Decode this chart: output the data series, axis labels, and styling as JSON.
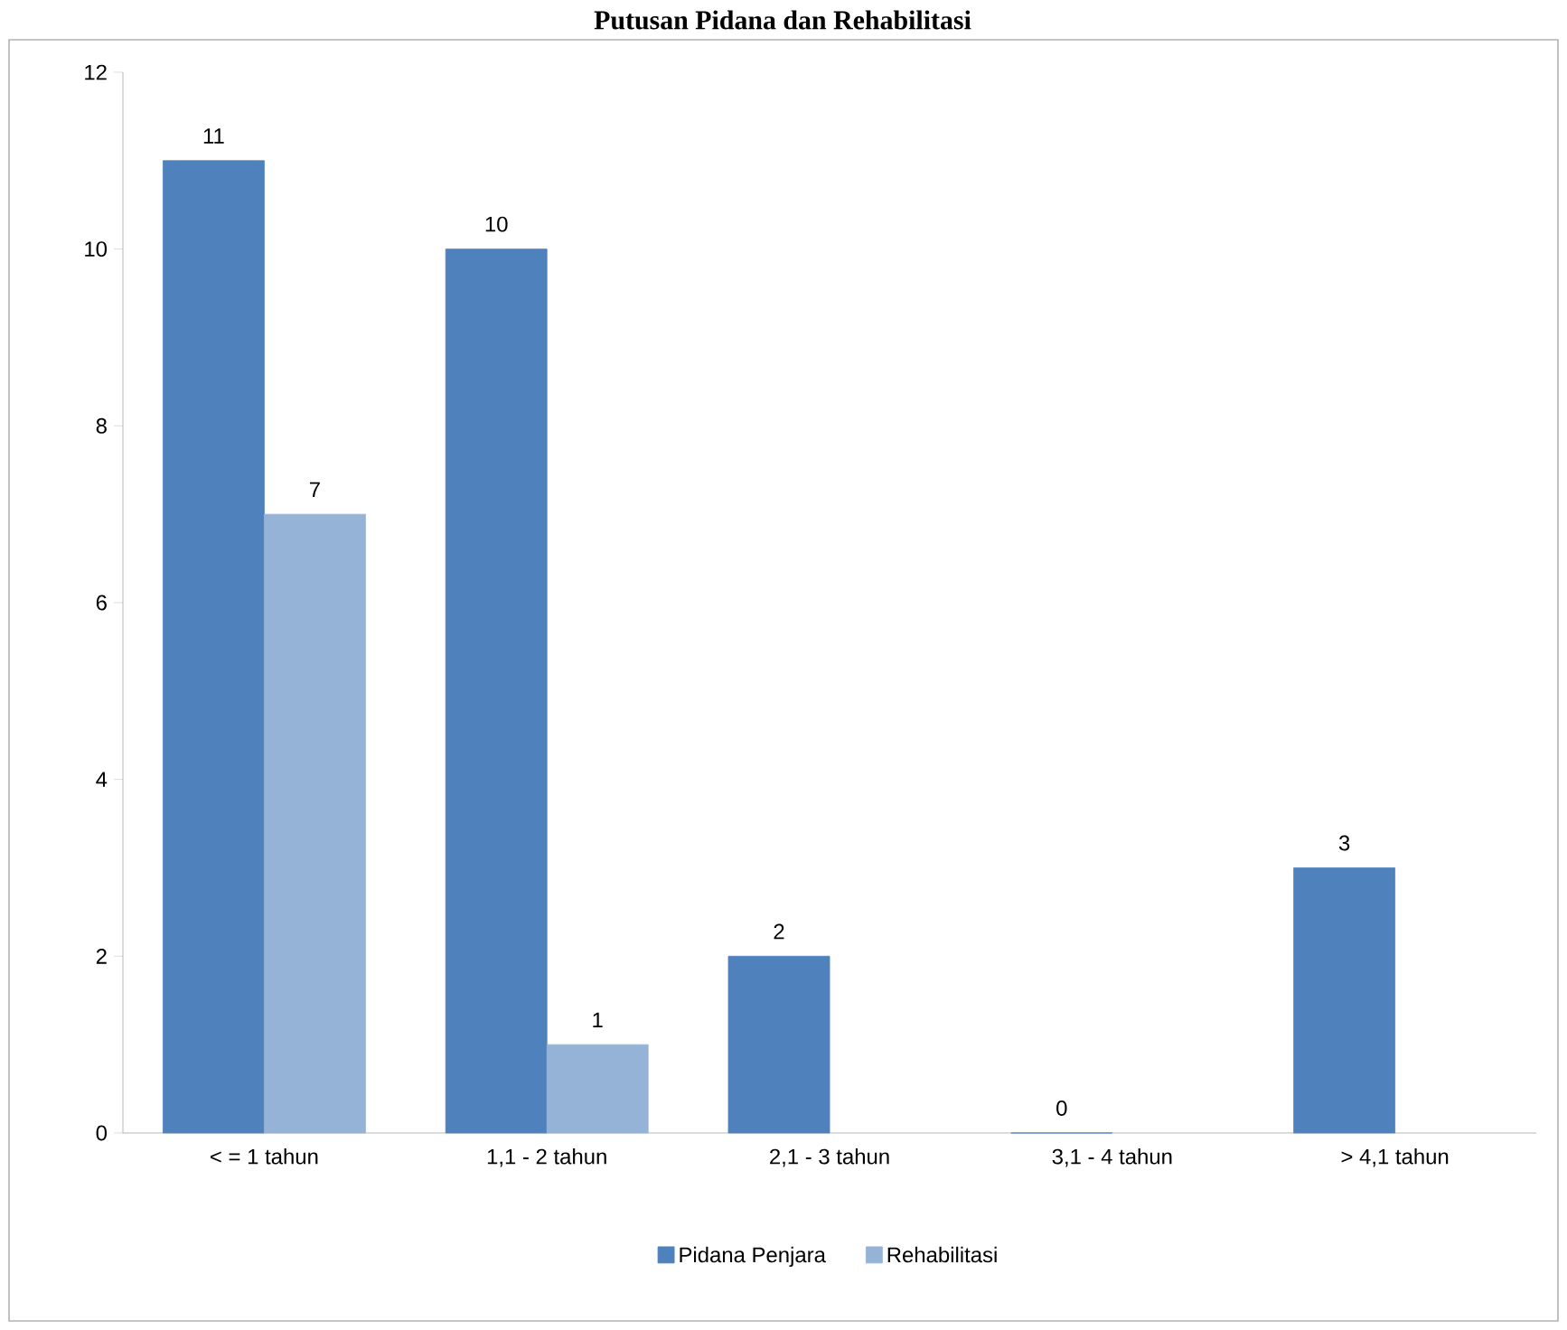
{
  "chart_data": {
    "type": "bar",
    "title": "Putusan Pidana dan Rehabilitasi",
    "categories": [
      "< = 1 tahun",
      "1,1 - 2 tahun",
      "2,1 - 3 tahun",
      "3,1 - 4 tahun",
      "> 4,1 tahun"
    ],
    "series": [
      {
        "name": "Pidana Penjara",
        "color": "#4f81bd",
        "values": [
          11,
          10,
          2,
          0,
          3
        ]
      },
      {
        "name": "Rehabilitasi",
        "color": "#95b3d7",
        "values": [
          7,
          1,
          null,
          null,
          null
        ]
      }
    ],
    "ylim": [
      0,
      12
    ],
    "yticks": [
      0,
      2,
      4,
      6,
      8,
      10,
      12
    ],
    "grid": false,
    "legend": "bottom",
    "data_labels": true
  }
}
